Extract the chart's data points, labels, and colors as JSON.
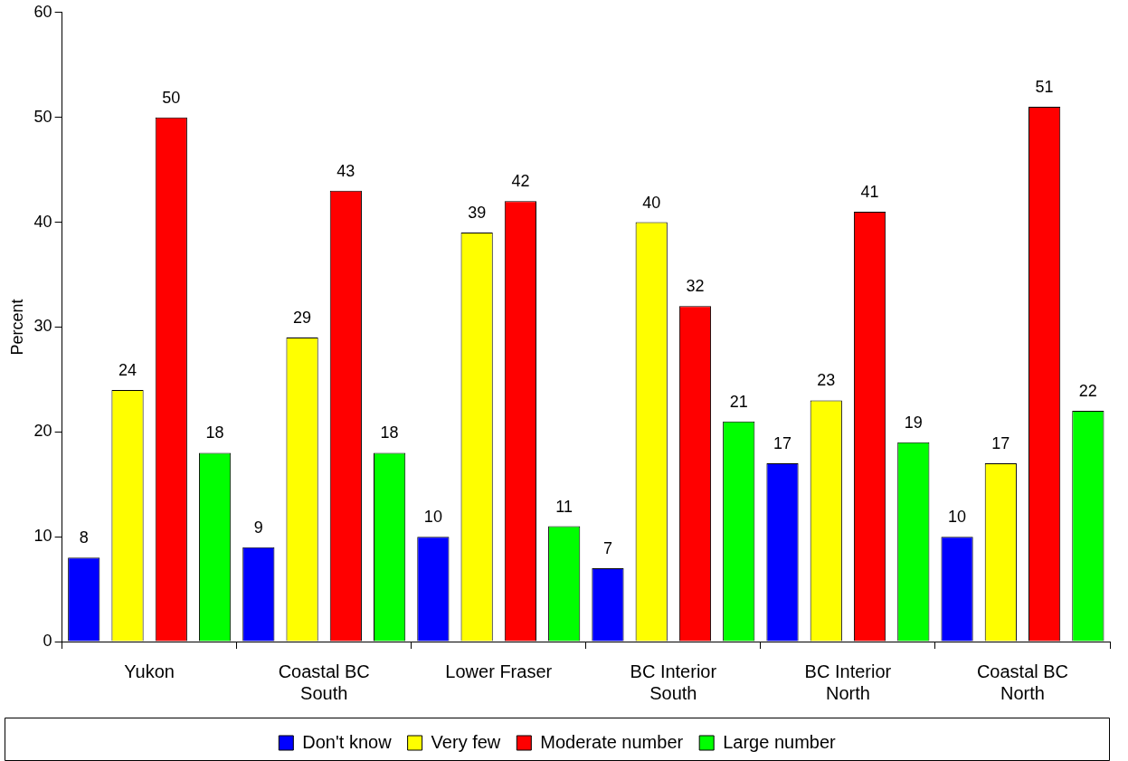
{
  "chart_data": {
    "type": "bar",
    "ylabel": "Percent",
    "categories": [
      "Yukon",
      "Coastal BC South",
      "Lower Fraser",
      "BC Interior South",
      "BC Interior North",
      "Coastal BC North"
    ],
    "series": [
      {
        "name": "Don't know",
        "color": "#0000ff",
        "values": [
          8,
          9,
          10,
          7,
          17,
          10
        ]
      },
      {
        "name": "Very few",
        "color": "#ffff00",
        "values": [
          24,
          29,
          39,
          40,
          23,
          17
        ]
      },
      {
        "name": "Moderate number",
        "color": "#ff0000",
        "values": [
          50,
          43,
          42,
          32,
          41,
          51
        ]
      },
      {
        "name": "Large number",
        "color": "#00ff00",
        "values": [
          18,
          18,
          11,
          21,
          19,
          22
        ]
      }
    ],
    "ylim": [
      0,
      60
    ],
    "yticks": [
      0,
      10,
      20,
      30,
      40,
      50,
      60
    ],
    "grid": false,
    "legend": "bottom",
    "data_labels": true
  }
}
